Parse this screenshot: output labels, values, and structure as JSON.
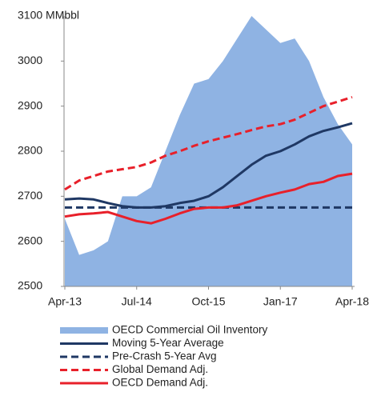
{
  "chart_data": {
    "type": "line",
    "categories": [
      "Apr-13",
      null,
      null,
      null,
      null,
      "Jul-14",
      null,
      null,
      null,
      null,
      "Oct-15",
      null,
      null,
      null,
      null,
      "Jan-17",
      null,
      null,
      null,
      null,
      "Apr-18"
    ],
    "ylim": [
      2500,
      3100
    ],
    "yticks": [
      2500,
      2600,
      2700,
      2800,
      2900,
      3000,
      {
        "value": 3100,
        "label": "3100 MMbbl"
      }
    ],
    "series": [
      {
        "name": "OECD Commercial Oil Inventory",
        "color": "#8fb3e3",
        "area": true,
        "values": [
          2650,
          2570,
          2580,
          2600,
          2700,
          2700,
          2720,
          2800,
          2880,
          2950,
          2960,
          3000,
          3050,
          3100,
          3070,
          3040,
          3050,
          3000,
          2920,
          2860,
          2815
        ]
      },
      {
        "name": "Moving 5-Year Average",
        "color": "#1f3864",
        "values": [
          2693,
          2695,
          2693,
          2685,
          2678,
          2675,
          2675,
          2678,
          2685,
          2690,
          2700,
          2720,
          2745,
          2770,
          2790,
          2800,
          2815,
          2833,
          2845,
          2853,
          2862
        ]
      },
      {
        "name": "Pre-Crash 5-Year Avg",
        "color": "#1f3864",
        "dashed": true,
        "values": [
          2675,
          2675,
          2675,
          2675,
          2675,
          2675,
          2675,
          2675,
          2675,
          2675,
          2675,
          2675,
          2675,
          2675,
          2675,
          2675,
          2675,
          2675,
          2675,
          2675,
          2675
        ]
      },
      {
        "name": "Global Demand Adj.",
        "color": "#e8202a",
        "dashed": true,
        "values": [
          2715,
          2735,
          2745,
          2755,
          2760,
          2765,
          2775,
          2790,
          2800,
          2812,
          2822,
          2830,
          2838,
          2847,
          2855,
          2860,
          2870,
          2885,
          2900,
          2910,
          2920
        ]
      },
      {
        "name": "OECD Demand Adj.",
        "color": "#e8202a",
        "values": [
          2655,
          2660,
          2662,
          2665,
          2655,
          2645,
          2640,
          2650,
          2662,
          2672,
          2675,
          2675,
          2680,
          2690,
          2700,
          2708,
          2715,
          2727,
          2732,
          2745,
          2750
        ]
      }
    ]
  }
}
